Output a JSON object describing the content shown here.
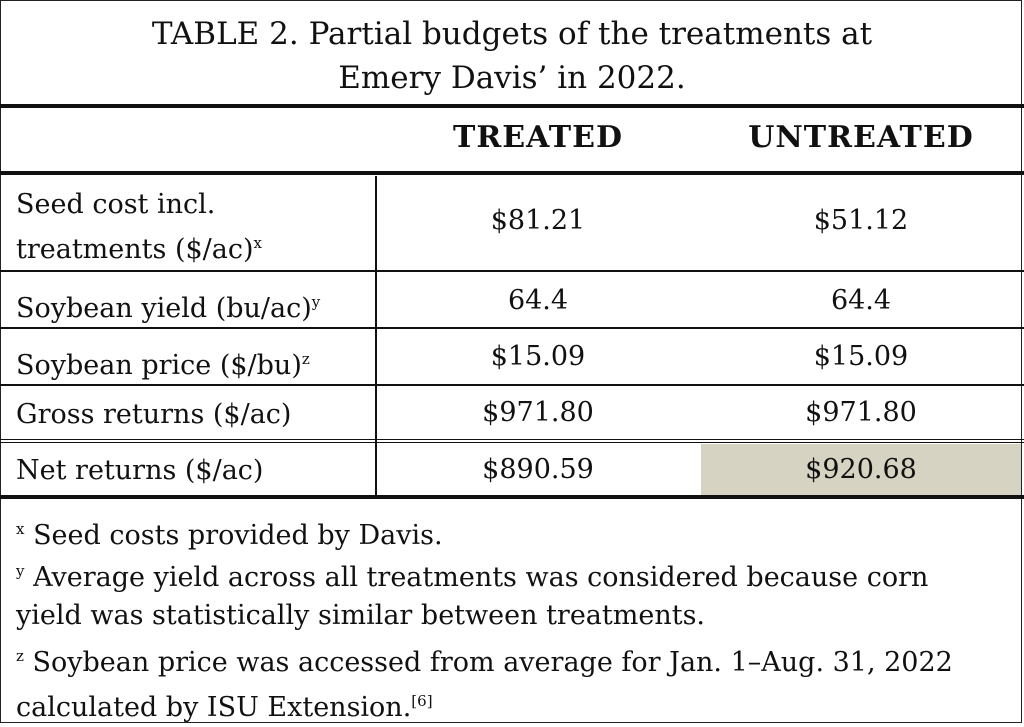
{
  "title": {
    "line1": "TABLE 2. Partial budgets of the treatments at",
    "line2": "Emery Davis’ in 2022."
  },
  "columns": [
    "TREATED",
    "UNTREATED"
  ],
  "rows": [
    {
      "label_line1": "Seed cost incl.",
      "label_line2": "treatments ($/ac)",
      "sup": "x",
      "treated": "$81.21",
      "untreated": "$51.12"
    },
    {
      "label": "Soybean yield (bu/ac)",
      "sup": "y",
      "treated": "64.4",
      "untreated": "64.4"
    },
    {
      "label": "Soybean price ($/bu)",
      "sup": "z",
      "treated": "$15.09",
      "untreated": "$15.09"
    },
    {
      "label": "Gross returns ($/ac)",
      "sup": "",
      "treated": "$971.80",
      "untreated": "$971.80"
    },
    {
      "label": "Net returns ($/ac)",
      "sup": "",
      "treated": "$890.59",
      "untreated": "$920.68"
    }
  ],
  "highlight_color": "#d6d3c3",
  "footnotes": [
    {
      "mark": "x",
      "text": "Seed costs provided by Davis."
    },
    {
      "mark": "y",
      "line1": "Average yield across all treatments was considered because corn",
      "line2": "yield was statistically similar between treatments."
    },
    {
      "mark": "z",
      "line1": "Soybean price was accessed from average for Jan. 1–Aug. 31, 2022",
      "line2": "calculated by ISU Extension.",
      "ref": "[6]"
    }
  ]
}
